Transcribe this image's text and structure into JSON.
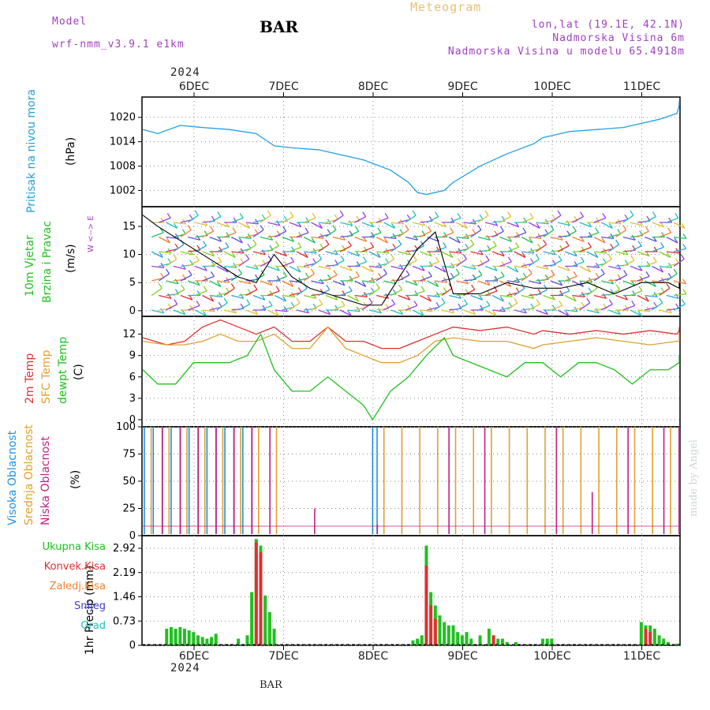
{
  "header": {
    "model_label": "Model",
    "model_name": "wrf-nmm_v3.9.1 e1km",
    "station": "BAR",
    "chart_title": "Meteogram",
    "coords": "lon,lat (19.1E, 42.1N)",
    "elevation": "Nadmorska Visina 6m",
    "model_elevation": "Nadmorska Visina u modelu 65.4918m",
    "watermark": "made by Angel",
    "footer_station": "BAR"
  },
  "colors": {
    "purple": "#a040c0",
    "orange_title": "#e8c070",
    "pressure": "#20a0e0",
    "t2m": "#e03030",
    "sfc": "#e0a030",
    "dewpt": "#20c020",
    "high_cloud": "#2090e0",
    "mid_cloud": "#e0a030",
    "low_cloud": "#c02080",
    "precip_total": "#20c020",
    "precip_conv": "#e03030",
    "precip_frz": "#f08030",
    "snow": "#4040e0",
    "hail": "#20c0c0"
  },
  "time_axis": {
    "year": "2024",
    "days": [
      "6DEC",
      "7DEC",
      "8DEC",
      "9DEC",
      "10DEC",
      "11DEC"
    ]
  },
  "panels": {
    "pressure": {
      "ylabel": "Pritisak na nivou mora",
      "unit": "(hPa)"
    },
    "wind": {
      "ylabel_1": "10m Vjetar",
      "ylabel_2": "Brzina i Pravac",
      "unit": "(m/s)",
      "compass": "W <--> E"
    },
    "temp": {
      "ylabel_1": "2m Temp",
      "ylabel_2": "SFC Temp",
      "ylabel_3": "dewpt Temp",
      "unit": "(C)"
    },
    "cloud": {
      "ylabel_1": "Visoka Oblacnost",
      "ylabel_2": "Srednja Oblacnost",
      "ylabel_3": "Niska Oblacnost",
      "unit": "(%)"
    },
    "precip": {
      "unit": "1hr Precip (mm)",
      "legend": [
        "Ukupna Kisa",
        "Konvek.Kisa",
        "Zaledj.Kisa",
        "Snijeg",
        "Grad"
      ]
    }
  },
  "chart_data": [
    {
      "type": "line",
      "title": "Pritisak na nivou mora",
      "ylabel": "(hPa)",
      "x_unit": "days since 6DEC 00Z",
      "ylim": [
        998,
        1025
      ],
      "yticks": [
        "1002",
        "1008",
        "1014",
        "1020"
      ],
      "series": [
        {
          "name": "Pritisak",
          "x": [
            -0.5,
            -0.3,
            -0.05,
            0.2,
            0.5,
            0.8,
            1.0,
            1.2,
            1.5,
            1.8,
            2.0,
            2.3,
            2.5,
            2.6,
            2.7,
            2.9,
            3.0,
            3.3,
            3.6,
            3.9,
            4.0,
            4.3,
            4.6,
            4.9,
            5.0,
            5.3,
            5.5,
            5.7,
            6.0
          ],
          "y": [
            1017,
            1016,
            1018,
            1017.5,
            1017,
            1016,
            1013,
            1012.5,
            1012,
            1010.5,
            1009.5,
            1007,
            1004,
            1001.5,
            1001,
            1002,
            1004,
            1008,
            1011,
            1013.5,
            1015,
            1016.5,
            1017,
            1017.5,
            1018,
            1019.5,
            1021,
            1023,
            1024
          ]
        }
      ]
    },
    {
      "type": "scatter",
      "title": "10m Vjetar Brzina i Pravac",
      "ylabel": "(m/s)",
      "ylim": [
        -1,
        18.5
      ],
      "yticks": [
        "0",
        "5",
        "10",
        "15"
      ],
      "series": [
        {
          "name": "Brzina",
          "x": [
            -0.5,
            -0.3,
            0,
            0.3,
            0.6,
            0.8,
            1.0,
            1.2,
            1.4,
            1.6,
            1.8,
            2.0,
            2.2,
            2.4,
            2.6,
            2.8,
            3.0,
            3.3,
            3.6,
            3.9,
            4.2,
            4.5,
            4.8,
            5.1,
            5.4,
            5.7,
            6.0
          ],
          "y": [
            17,
            15,
            12,
            9,
            6,
            5,
            10,
            6,
            4,
            3,
            2,
            1,
            1,
            6,
            11,
            14,
            3,
            3,
            5,
            4,
            4,
            5,
            3,
            5,
            5,
            4,
            5
          ]
        }
      ]
    },
    {
      "type": "line",
      "title": "2m Temp / SFC Temp / dewpt Temp",
      "ylabel": "(C)",
      "ylim": [
        -1,
        14.5
      ],
      "yticks": [
        "0",
        "3",
        "6",
        "9",
        "12"
      ],
      "series": [
        {
          "name": "2m Temp",
          "x": [
            -0.5,
            -0.2,
            0,
            0.2,
            0.4,
            0.6,
            0.8,
            1.0,
            1.2,
            1.4,
            1.6,
            1.8,
            2.0,
            2.2,
            2.4,
            2.6,
            2.8,
            3.0,
            3.3,
            3.6,
            3.9,
            4.0,
            4.3,
            4.6,
            4.9,
            5.2,
            5.5,
            5.8,
            6.0
          ],
          "y": [
            11.5,
            10.5,
            11,
            13,
            14,
            13,
            12,
            13,
            11,
            11,
            13,
            11,
            11,
            10,
            10,
            11,
            12,
            13,
            12.5,
            13,
            12,
            12.5,
            12,
            12.5,
            12,
            12.5,
            12,
            12.5,
            13
          ]
        },
        {
          "name": "SFC Temp",
          "x": [
            -0.5,
            -0.2,
            0,
            0.2,
            0.4,
            0.6,
            0.8,
            1.0,
            1.2,
            1.4,
            1.6,
            1.8,
            2.0,
            2.2,
            2.4,
            2.6,
            2.8,
            3.0,
            3.3,
            3.6,
            3.9,
            4.0,
            4.3,
            4.6,
            4.9,
            5.2,
            5.5,
            5.8,
            6.0
          ],
          "y": [
            11,
            10.5,
            10.5,
            11,
            12,
            11,
            11,
            12,
            10,
            10,
            13,
            10,
            9,
            8,
            8,
            9,
            11,
            11.5,
            11,
            11,
            10,
            10.5,
            11,
            11.5,
            11,
            10.5,
            11,
            11,
            12
          ]
        },
        {
          "name": "dewpt Temp",
          "x": [
            -0.5,
            -0.3,
            -0.1,
            0.1,
            0.3,
            0.5,
            0.7,
            0.85,
            1.0,
            1.2,
            1.4,
            1.6,
            1.8,
            2.0,
            2.1,
            2.3,
            2.5,
            2.7,
            2.9,
            3.0,
            3.2,
            3.4,
            3.6,
            3.8,
            4.0,
            4.2,
            4.4,
            4.6,
            4.8,
            5.0,
            5.2,
            5.4,
            5.6,
            5.8,
            6.0
          ],
          "y": [
            7,
            5,
            5,
            8,
            8,
            8,
            9,
            12,
            7,
            4,
            4,
            6,
            4,
            2,
            0,
            4,
            6,
            9,
            11.5,
            9,
            8,
            7,
            6,
            8,
            8,
            6,
            8,
            8,
            7,
            5,
            7,
            7,
            8,
            8,
            9
          ]
        }
      ]
    },
    {
      "type": "bar",
      "title": "Oblacnost",
      "ylabel": "(%)",
      "ylim": [
        0,
        100
      ],
      "yticks": [
        "0",
        "25",
        "50",
        "75",
        "100"
      ],
      "series": [
        {
          "name": "Visoka Oblacnost",
          "x": [
            -0.45,
            -0.35,
            -0.25,
            -0.15,
            -0.05,
            0.05,
            0.15,
            0.25,
            0.35,
            0.45,
            0.55,
            0.65,
            0.75,
            2.1,
            2.15
          ],
          "y": [
            100,
            100,
            100,
            100,
            100,
            100,
            100,
            100,
            100,
            100,
            100,
            100,
            100,
            100,
            100
          ]
        },
        {
          "name": "Srednja Oblacnost",
          "x": [
            -0.4,
            -0.2,
            0,
            0.2,
            0.4,
            0.6,
            0.8,
            1.0,
            2.2,
            2.4,
            2.6,
            2.8,
            3.0,
            3.2,
            3.4,
            3.6,
            3.8,
            4.0,
            4.2,
            4.4,
            4.6,
            4.8,
            5.0,
            5.2,
            5.4,
            5.6,
            5.8,
            6.0
          ],
          "y": [
            100,
            100,
            100,
            100,
            100,
            100,
            100,
            100,
            100,
            100,
            100,
            100,
            100,
            100,
            100,
            100,
            100,
            100,
            100,
            100,
            100,
            100,
            100,
            100,
            100,
            100,
            100,
            100
          ]
        },
        {
          "name": "Niska Oblacnost",
          "x": [
            -0.3,
            -0.1,
            0.1,
            0.3,
            0.5,
            0.7,
            0.9,
            1.4,
            2.1,
            2.9,
            3.3,
            4.1,
            4.5,
            4.9,
            5.3,
            5.7,
            5.9
          ],
          "y": [
            100,
            100,
            100,
            100,
            100,
            100,
            100,
            25,
            10,
            100,
            100,
            100,
            40,
            100,
            100,
            100,
            100
          ]
        }
      ]
    },
    {
      "type": "bar",
      "title": "1hr Precip",
      "ylabel": "1hr Precip (mm)",
      "ylim": [
        0,
        3.3
      ],
      "yticks": [
        "0",
        "0.73",
        "1.46",
        "2.19",
        "2.92"
      ],
      "series": [
        {
          "name": "Ukupna Kisa",
          "x": [
            -0.2,
            -0.15,
            -0.1,
            -0.05,
            0,
            0.05,
            0.1,
            0.15,
            0.2,
            0.25,
            0.3,
            0.35,
            0.6,
            0.7,
            0.75,
            0.8,
            0.85,
            0.9,
            0.95,
            1.0,
            2.55,
            2.6,
            2.65,
            2.7,
            2.75,
            2.8,
            2.85,
            2.9,
            2.95,
            3.0,
            3.05,
            3.1,
            3.15,
            3.2,
            3.3,
            3.4,
            3.45,
            3.5,
            3.55,
            3.6,
            3.7,
            4.0,
            4.05,
            4.1,
            5.1,
            5.15,
            5.2,
            5.25,
            5.3,
            5.35,
            5.4,
            5.5,
            6.0
          ],
          "y": [
            0.5,
            0.55,
            0.5,
            0.55,
            0.5,
            0.45,
            0.4,
            0.3,
            0.25,
            0.2,
            0.25,
            0.35,
            0.2,
            0.3,
            1.6,
            3.2,
            3,
            1.5,
            1,
            0.5,
            0.15,
            0.2,
            0.3,
            3,
            1.6,
            1.2,
            0.9,
            0.7,
            0.6,
            0.6,
            0.4,
            0.3,
            0.4,
            0.2,
            0.3,
            0.5,
            0.3,
            0.2,
            0.2,
            0.1,
            0.1,
            0.2,
            0.2,
            0.2,
            0.7,
            0.6,
            0.6,
            0.5,
            0.3,
            0.2,
            0.1,
            0.05,
            0.3
          ]
        },
        {
          "name": "Konvek.Kisa",
          "x": [
            0.8,
            0.85,
            2.7,
            2.75,
            2.8,
            3.45,
            5.15,
            5.2
          ],
          "y": [
            3.1,
            2.8,
            2.4,
            1.2,
            0.8,
            0.3,
            0.5,
            0.4
          ]
        }
      ]
    }
  ]
}
